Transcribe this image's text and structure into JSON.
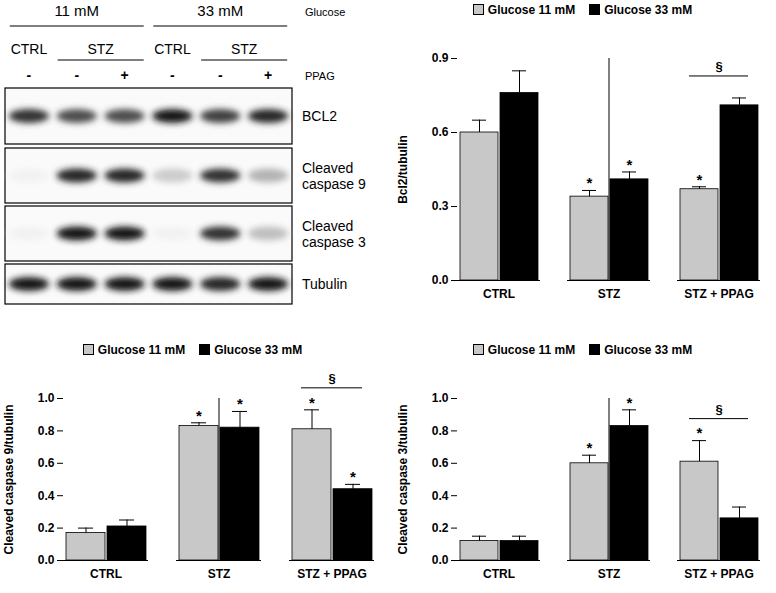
{
  "blot": {
    "condition_label": "Glucose",
    "treatment_label": "PPAG",
    "groups": [
      {
        "label": "11 mM",
        "conditions": [
          {
            "label": "CTRL",
            "lanes": [
              "-"
            ]
          },
          {
            "label": "STZ",
            "lanes": [
              "-",
              "+"
            ]
          }
        ]
      },
      {
        "label": "33 mM",
        "conditions": [
          {
            "label": "CTRL",
            "lanes": [
              "-"
            ]
          },
          {
            "label": "STZ",
            "lanes": [
              "-",
              "+"
            ]
          }
        ]
      }
    ],
    "rows": [
      {
        "label": "BCL2",
        "band_intensity": [
          0.8,
          0.7,
          0.7,
          0.9,
          0.75,
          0.85
        ]
      },
      {
        "label": "Cleaved caspase 9",
        "band_intensity": [
          0.05,
          0.85,
          0.85,
          0.2,
          0.8,
          0.3
        ]
      },
      {
        "label": "Cleaved caspase 3",
        "band_intensity": [
          0.05,
          0.9,
          0.9,
          0.05,
          0.8,
          0.25
        ]
      },
      {
        "label": "Tubulin",
        "band_intensity": [
          0.9,
          0.9,
          0.9,
          0.9,
          0.85,
          0.9
        ]
      }
    ]
  },
  "chart_data": [
    {
      "type": "bar",
      "y_label": "Bcl2/tubulin",
      "categories": [
        "CTRL",
        "STZ",
        "STZ + PPAG"
      ],
      "series": [
        {
          "name": "Glucose 11 mM",
          "color": "#c8c8c8",
          "values": [
            0.6,
            0.34,
            0.37
          ],
          "errors": [
            0.05,
            0.025,
            0.01
          ],
          "significance": [
            null,
            "*",
            "*"
          ]
        },
        {
          "name": "Glucose 33 mM",
          "color": "#000000",
          "values": [
            0.76,
            0.41,
            0.71
          ],
          "errors": [
            0.09,
            0.03,
            0.03
          ],
          "significance": [
            null,
            "*",
            null
          ]
        }
      ],
      "brackets": [
        {
          "category": "STZ + PPAG",
          "label": "§"
        }
      ],
      "ylim": [
        0,
        0.9
      ],
      "yticks": [
        {
          "value": 0,
          "label": "0.0"
        },
        {
          "value": 0.3,
          "label": "0.3"
        },
        {
          "value": 0.6,
          "label": "0.6"
        },
        {
          "value": 0.9,
          "label": "0.9"
        }
      ],
      "legend": "top"
    },
    {
      "type": "bar",
      "y_label": "Cleaved caspase 9/tubulin",
      "categories": [
        "CTRL",
        "STZ",
        "STZ + PPAG"
      ],
      "series": [
        {
          "name": "Glucose 11 mM",
          "color": "#c8c8c8",
          "values": [
            0.17,
            0.83,
            0.81
          ],
          "errors": [
            0.03,
            0.02,
            0.12
          ],
          "significance": [
            null,
            "*",
            "*"
          ]
        },
        {
          "name": "Glucose 33 mM",
          "color": "#000000",
          "values": [
            0.21,
            0.82,
            0.44
          ],
          "errors": [
            0.04,
            0.1,
            0.03
          ],
          "significance": [
            null,
            "*",
            "*"
          ]
        }
      ],
      "brackets": [
        {
          "category": "STZ + PPAG",
          "label": "§"
        }
      ],
      "ylim": [
        0,
        1.0
      ],
      "yticks": [
        {
          "value": 0,
          "label": "0.0"
        },
        {
          "value": 0.2,
          "label": "0.2"
        },
        {
          "value": 0.4,
          "label": "0.4"
        },
        {
          "value": 0.6,
          "label": "0.6"
        },
        {
          "value": 0.8,
          "label": "0.8"
        },
        {
          "value": 1.0,
          "label": "1.0"
        }
      ],
      "legend": "top"
    },
    {
      "type": "bar",
      "y_label": "Cleaved caspase 3/tubulin",
      "categories": [
        "CTRL",
        "STZ",
        "STZ + PPAG"
      ],
      "series": [
        {
          "name": "Glucose 11 mM",
          "color": "#c8c8c8",
          "values": [
            0.12,
            0.6,
            0.61
          ],
          "errors": [
            0.03,
            0.05,
            0.13
          ],
          "significance": [
            null,
            "*",
            "*"
          ]
        },
        {
          "name": "Glucose 33 mM",
          "color": "#000000",
          "values": [
            0.12,
            0.83,
            0.26
          ],
          "errors": [
            0.03,
            0.1,
            0.07
          ],
          "significance": [
            null,
            "*",
            null
          ]
        }
      ],
      "brackets": [
        {
          "category": "STZ + PPAG",
          "label": "§"
        }
      ],
      "ylim": [
        0,
        1.0
      ],
      "yticks": [
        {
          "value": 0,
          "label": "0.0"
        },
        {
          "value": 0.2,
          "label": "0.2"
        },
        {
          "value": 0.4,
          "label": "0.4"
        },
        {
          "value": 0.6,
          "label": "0.6"
        },
        {
          "value": 0.8,
          "label": "0.8"
        },
        {
          "value": 1.0,
          "label": "1.0"
        }
      ],
      "legend": "top"
    }
  ]
}
